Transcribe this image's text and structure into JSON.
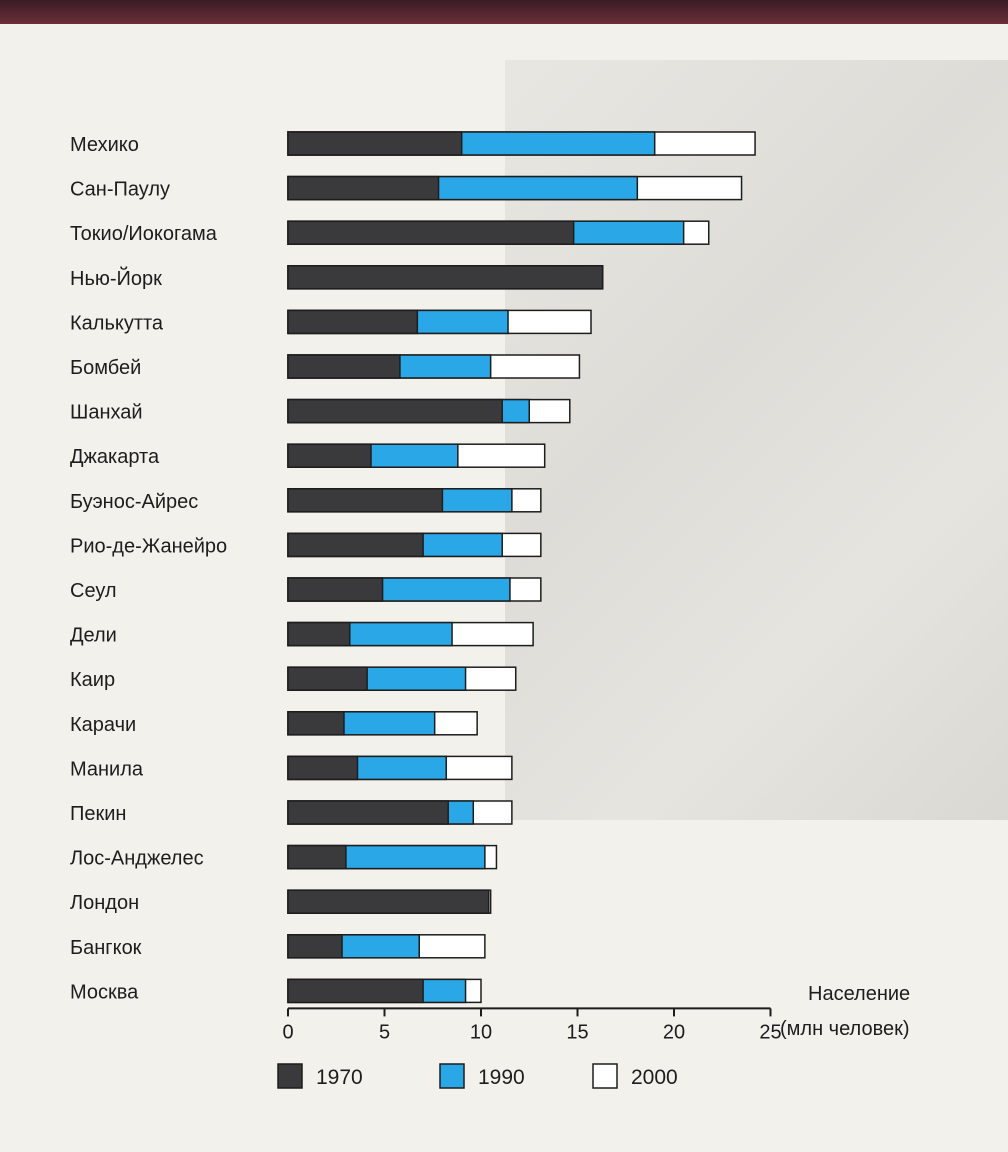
{
  "chart_data": {
    "type": "bar",
    "orientation": "horizontal",
    "stacked": "overlay",
    "categories": [
      "Мехико",
      "Сан-Паулу",
      "Токио/Иокогама",
      "Нью-Йорк",
      "Калькутта",
      "Бомбей",
      "Шанхай",
      "Джакарта",
      "Буэнос-Айрес",
      "Рио-де-Жанейро",
      "Сеул",
      "Дели",
      "Каир",
      "Карачи",
      "Манила",
      "Пекин",
      "Лос-Анджелес",
      "Лондон",
      "Бангкок",
      "Москва"
    ],
    "series": [
      {
        "name": "1970",
        "color": "#3a3a3c",
        "values": [
          9.0,
          7.8,
          14.8,
          16.3,
          6.7,
          5.8,
          11.1,
          4.3,
          8.0,
          7.0,
          4.9,
          3.2,
          4.1,
          2.9,
          3.6,
          8.3,
          3.0,
          10.4,
          2.8,
          7.0
        ]
      },
      {
        "name": "1990",
        "color": "#2aa7e6",
        "values": [
          19.0,
          18.1,
          20.5,
          16.3,
          11.4,
          10.5,
          12.5,
          8.8,
          11.6,
          11.1,
          11.5,
          8.5,
          9.2,
          7.6,
          8.2,
          9.6,
          10.2,
          10.4,
          6.8,
          9.2
        ]
      },
      {
        "name": "2000",
        "color": "#ffffff",
        "values": [
          24.2,
          23.5,
          21.8,
          16.3,
          15.7,
          15.1,
          14.6,
          13.3,
          13.1,
          13.1,
          13.1,
          12.7,
          11.8,
          9.8,
          11.6,
          11.6,
          10.8,
          10.5,
          10.2,
          10.0
        ]
      }
    ],
    "xlim": [
      0,
      25
    ],
    "xticks": [
      "0",
      "5",
      "10",
      "15",
      "20",
      "25"
    ],
    "xlabel_line1": "Население",
    "xlabel_line2": "(млн человек)",
    "legend_position": "bottom"
  }
}
